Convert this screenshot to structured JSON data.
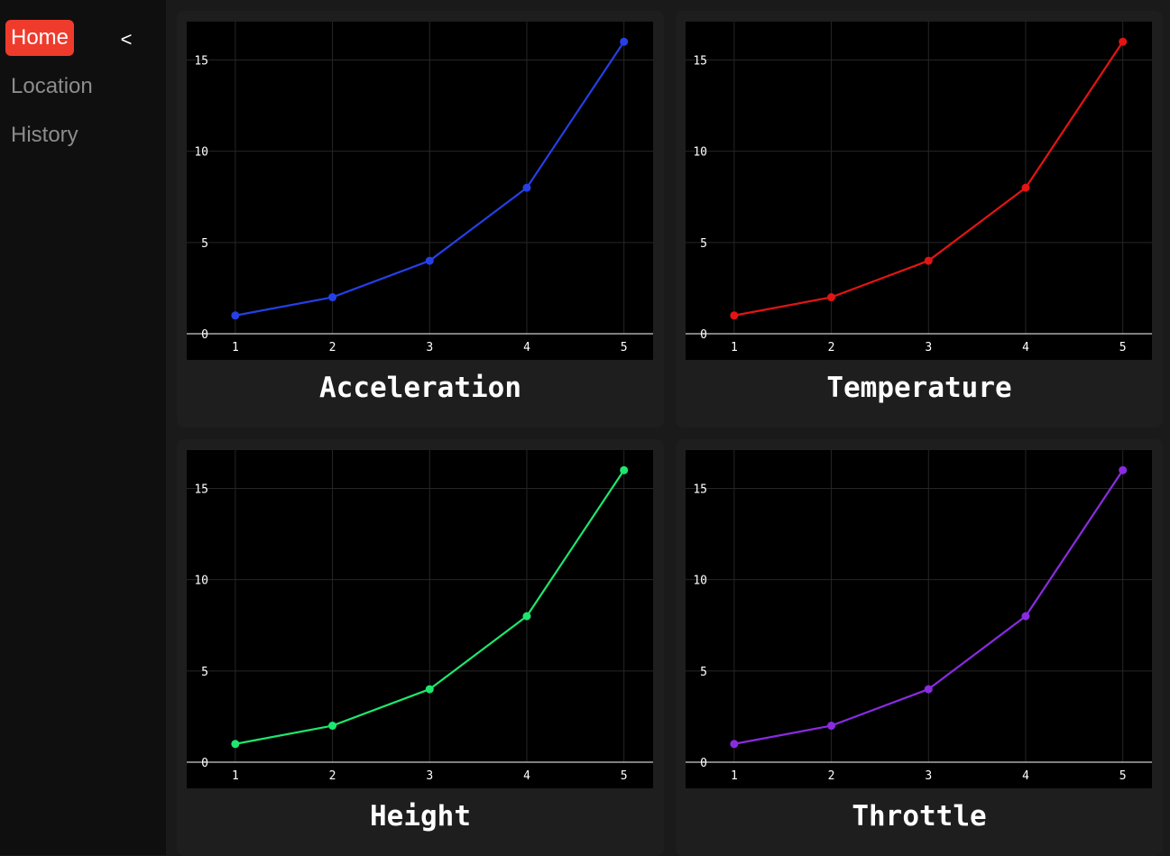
{
  "sidebar": {
    "items": [
      {
        "label": "Home",
        "active": true
      },
      {
        "label": "Location",
        "active": false
      },
      {
        "label": "History",
        "active": false
      }
    ],
    "collapse_label": "<"
  },
  "colors": {
    "accent": "#ef3b2c",
    "acceleration": "#2440e6",
    "temperature": "#e31414",
    "height": "#1ee66e",
    "throttle": "#8a2be2"
  },
  "chart_data": [
    {
      "type": "line",
      "title": "Acceleration",
      "x": [
        1,
        2,
        3,
        4,
        5
      ],
      "values": [
        1,
        2,
        4,
        8,
        16
      ],
      "xlim": [
        0.5,
        5.3
      ],
      "ylim": [
        0,
        17.1
      ],
      "xticks": [
        1,
        2,
        3,
        4,
        5
      ],
      "yticks": [
        0,
        5,
        10,
        15
      ],
      "color": "#2440e6",
      "grid": true
    },
    {
      "type": "line",
      "title": "Temperature",
      "x": [
        1,
        2,
        3,
        4,
        5
      ],
      "values": [
        1,
        2,
        4,
        8,
        16
      ],
      "xlim": [
        0.5,
        5.3
      ],
      "ylim": [
        0,
        17.1
      ],
      "xticks": [
        1,
        2,
        3,
        4,
        5
      ],
      "yticks": [
        0,
        5,
        10,
        15
      ],
      "color": "#e31414",
      "grid": true
    },
    {
      "type": "line",
      "title": "Height",
      "x": [
        1,
        2,
        3,
        4,
        5
      ],
      "values": [
        1,
        2,
        4,
        8,
        16
      ],
      "xlim": [
        0.5,
        5.3
      ],
      "ylim": [
        0,
        17.1
      ],
      "xticks": [
        1,
        2,
        3,
        4,
        5
      ],
      "yticks": [
        0,
        5,
        10,
        15
      ],
      "color": "#1ee66e",
      "grid": true
    },
    {
      "type": "line",
      "title": "Throttle",
      "x": [
        1,
        2,
        3,
        4,
        5
      ],
      "values": [
        1,
        2,
        4,
        8,
        16
      ],
      "xlim": [
        0.5,
        5.3
      ],
      "ylim": [
        0,
        17.1
      ],
      "xticks": [
        1,
        2,
        3,
        4,
        5
      ],
      "yticks": [
        0,
        5,
        10,
        15
      ],
      "color": "#8a2be2",
      "grid": true
    }
  ]
}
